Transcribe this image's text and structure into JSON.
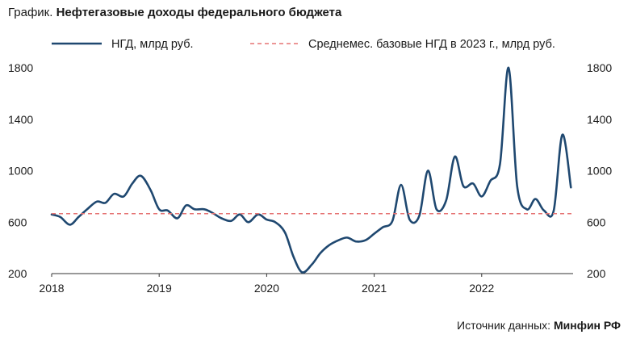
{
  "header": {
    "title_prefix": "График.",
    "title": "Нефтегазовые доходы федерального бюджета"
  },
  "source": {
    "label": "Источник данных:",
    "name": "Минфин РФ"
  },
  "colors": {
    "series": "#1f4870",
    "reference": "#e57373",
    "axis": "#333333",
    "text": "#1a1a1a"
  },
  "chart_data": {
    "type": "line",
    "title": "Нефтегазовые доходы федерального бюджета",
    "xlabel": "",
    "ylabel": "",
    "xlim": [
      2018.0,
      2022.85
    ],
    "ylim": [
      200,
      1800
    ],
    "x_ticks": [
      2018,
      2019,
      2020,
      2021,
      2022
    ],
    "y_ticks": [
      200,
      600,
      1000,
      1400,
      1800
    ],
    "y_axis_both_sides": true,
    "grid": false,
    "legend": "top",
    "series": [
      {
        "name": "НГД, млрд руб.",
        "style": "solid",
        "x": [
          2018.0,
          2018.08,
          2018.17,
          2018.25,
          2018.33,
          2018.42,
          2018.5,
          2018.58,
          2018.67,
          2018.75,
          2018.83,
          2018.92,
          2019.0,
          2019.08,
          2019.17,
          2019.25,
          2019.33,
          2019.42,
          2019.5,
          2019.58,
          2019.67,
          2019.75,
          2019.83,
          2019.92,
          2020.0,
          2020.08,
          2020.17,
          2020.25,
          2020.33,
          2020.42,
          2020.5,
          2020.58,
          2020.67,
          2020.75,
          2020.83,
          2020.92,
          2021.0,
          2021.08,
          2021.17,
          2021.25,
          2021.33,
          2021.42,
          2021.5,
          2021.58,
          2021.67,
          2021.75,
          2021.83,
          2021.92,
          2022.0,
          2022.08,
          2022.17,
          2022.25,
          2022.33,
          2022.42,
          2022.5,
          2022.58,
          2022.67,
          2022.75,
          2022.83
        ],
        "values": [
          660,
          640,
          580,
          640,
          700,
          760,
          750,
          820,
          800,
          900,
          960,
          850,
          700,
          690,
          630,
          730,
          700,
          700,
          670,
          630,
          610,
          660,
          600,
          660,
          620,
          600,
          520,
          330,
          210,
          270,
          360,
          420,
          460,
          480,
          450,
          460,
          510,
          560,
          610,
          890,
          620,
          650,
          1000,
          700,
          770,
          1110,
          880,
          900,
          800,
          920,
          1050,
          1800,
          880,
          700,
          780,
          690,
          690,
          1280,
          870
        ]
      },
      {
        "name": "Среднемес. базовые НГД в 2023 г., млрд руб.",
        "style": "dashed",
        "x": [
          2018.0,
          2022.85
        ],
        "values": [
          666,
          666
        ]
      }
    ]
  }
}
